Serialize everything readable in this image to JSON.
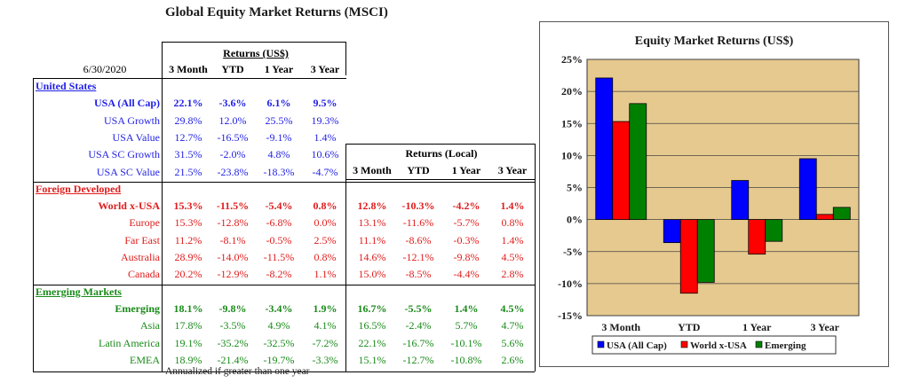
{
  "title": "Global Equity Market Returns (MSCI)",
  "date": "6/30/2020",
  "usd_header": "Returns (US$)",
  "local_header": "Returns (Local)",
  "columns": [
    "3 Month",
    "YTD",
    "1 Year",
    "3 Year"
  ],
  "footnote": "Annualized if greater than one year",
  "colors": {
    "blue": "#1f1fe6",
    "red": "#e01c1c",
    "green": "#1a8a1a",
    "plot_bg": "#e6c98f"
  },
  "sections": [
    {
      "name": "United States",
      "rows": [
        {
          "label": "USA (All Cap)",
          "usd": [
            "22.1%",
            "-3.6%",
            "6.1%",
            "9.5%"
          ],
          "local": []
        },
        {
          "label": "USA Growth",
          "usd": [
            "29.8%",
            "12.0%",
            "25.5%",
            "19.3%"
          ],
          "local": []
        },
        {
          "label": "USA Value",
          "usd": [
            "12.7%",
            "-16.5%",
            "-9.1%",
            "1.4%"
          ],
          "local": []
        },
        {
          "label": "USA SC Growth",
          "usd": [
            "31.5%",
            "-2.0%",
            "4.8%",
            "10.6%"
          ],
          "local": []
        },
        {
          "label": "USA SC Value",
          "usd": [
            "21.5%",
            "-23.8%",
            "-18.3%",
            "-4.7%"
          ],
          "local": []
        }
      ]
    },
    {
      "name": "Foreign Developed",
      "rows": [
        {
          "label": "World x-USA",
          "usd": [
            "15.3%",
            "-11.5%",
            "-5.4%",
            "0.8%"
          ],
          "local": [
            "12.8%",
            "-10.3%",
            "-4.2%",
            "1.4%"
          ]
        },
        {
          "label": "Europe",
          "usd": [
            "15.3%",
            "-12.8%",
            "-6.8%",
            "0.0%"
          ],
          "local": [
            "13.1%",
            "-11.6%",
            "-5.7%",
            "0.8%"
          ]
        },
        {
          "label": "Far East",
          "usd": [
            "11.2%",
            "-8.1%",
            "-0.5%",
            "2.5%"
          ],
          "local": [
            "11.1%",
            "-8.6%",
            "-0.3%",
            "1.4%"
          ]
        },
        {
          "label": "Australia",
          "usd": [
            "28.9%",
            "-14.0%",
            "-11.5%",
            "0.8%"
          ],
          "local": [
            "14.6%",
            "-12.1%",
            "-9.8%",
            "4.5%"
          ]
        },
        {
          "label": "Canada",
          "usd": [
            "20.2%",
            "-12.9%",
            "-8.2%",
            "1.1%"
          ],
          "local": [
            "15.0%",
            "-8.5%",
            "-4.4%",
            "2.8%"
          ]
        }
      ]
    },
    {
      "name": "Emerging Markets",
      "rows": [
        {
          "label": "Emerging",
          "usd": [
            "18.1%",
            "-9.8%",
            "-3.4%",
            "1.9%"
          ],
          "local": [
            "16.7%",
            "-5.5%",
            "1.4%",
            "4.5%"
          ]
        },
        {
          "label": "Asia",
          "usd": [
            "17.8%",
            "-3.5%",
            "4.9%",
            "4.1%"
          ],
          "local": [
            "16.5%",
            "-2.4%",
            "5.7%",
            "4.7%"
          ]
        },
        {
          "label": "Latin America",
          "usd": [
            "19.1%",
            "-35.2%",
            "-32.5%",
            "-7.2%"
          ],
          "local": [
            "22.1%",
            "-16.7%",
            "-10.1%",
            "5.6%"
          ]
        },
        {
          "label": "EMEA",
          "usd": [
            "18.9%",
            "-21.4%",
            "-19.7%",
            "-3.3%"
          ],
          "local": [
            "15.1%",
            "-12.7%",
            "-10.8%",
            "2.6%"
          ]
        }
      ]
    }
  ],
  "chart_data": {
    "type": "bar",
    "title": "Equity Market Returns (US$)",
    "categories": [
      "3 Month",
      "YTD",
      "1 Year",
      "3 Year"
    ],
    "series": [
      {
        "name": "USA (All Cap)",
        "values": [
          22.1,
          -3.6,
          6.1,
          9.5
        ],
        "color": "#0000ff"
      },
      {
        "name": "World x-USA",
        "values": [
          15.3,
          -11.5,
          -5.4,
          0.8
        ],
        "color": "#ff0000"
      },
      {
        "name": "Emerging",
        "values": [
          18.1,
          -9.8,
          -3.4,
          1.9
        ],
        "color": "#008000"
      }
    ],
    "ylim": [
      -15,
      25
    ],
    "yticks": [
      "25%",
      "20%",
      "15%",
      "10%",
      "5%",
      "0%",
      "-5%",
      "-10%",
      "-15%"
    ],
    "grid": true,
    "legend": "bottom"
  }
}
